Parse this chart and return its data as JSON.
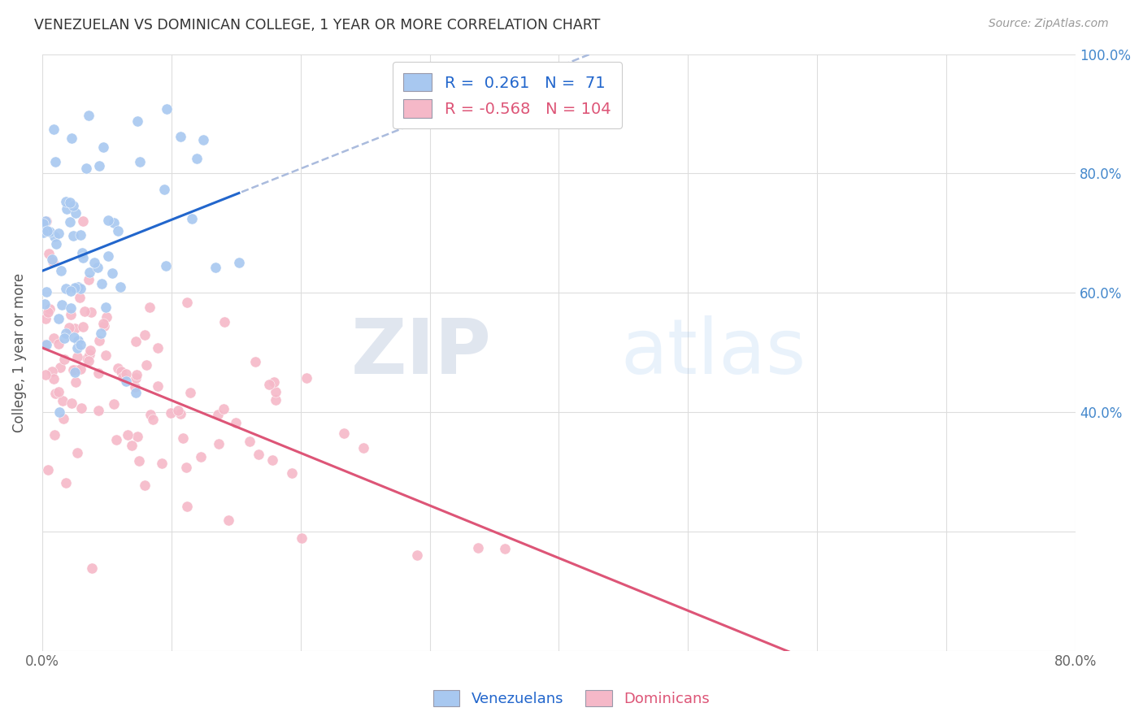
{
  "title": "VENEZUELAN VS DOMINICAN COLLEGE, 1 YEAR OR MORE CORRELATION CHART",
  "source": "Source: ZipAtlas.com",
  "ylabel": "College, 1 year or more",
  "x_label_legend1": "Venezuelans",
  "x_label_legend2": "Dominicans",
  "R_venezuelan": 0.261,
  "N_venezuelan": 71,
  "R_dominican": -0.568,
  "N_dominican": 104,
  "x_min": 0.0,
  "x_max": 0.8,
  "y_min": 0.0,
  "y_max": 1.0,
  "color_venezuelan": "#a8c8f0",
  "color_dominican": "#f5b8c8",
  "color_venezuelan_line": "#2266cc",
  "color_dominican_line": "#dd5577",
  "color_dashed_line": "#aabbdd",
  "watermark_zip": "ZIP",
  "watermark_atlas": "atlas",
  "seed": 7
}
